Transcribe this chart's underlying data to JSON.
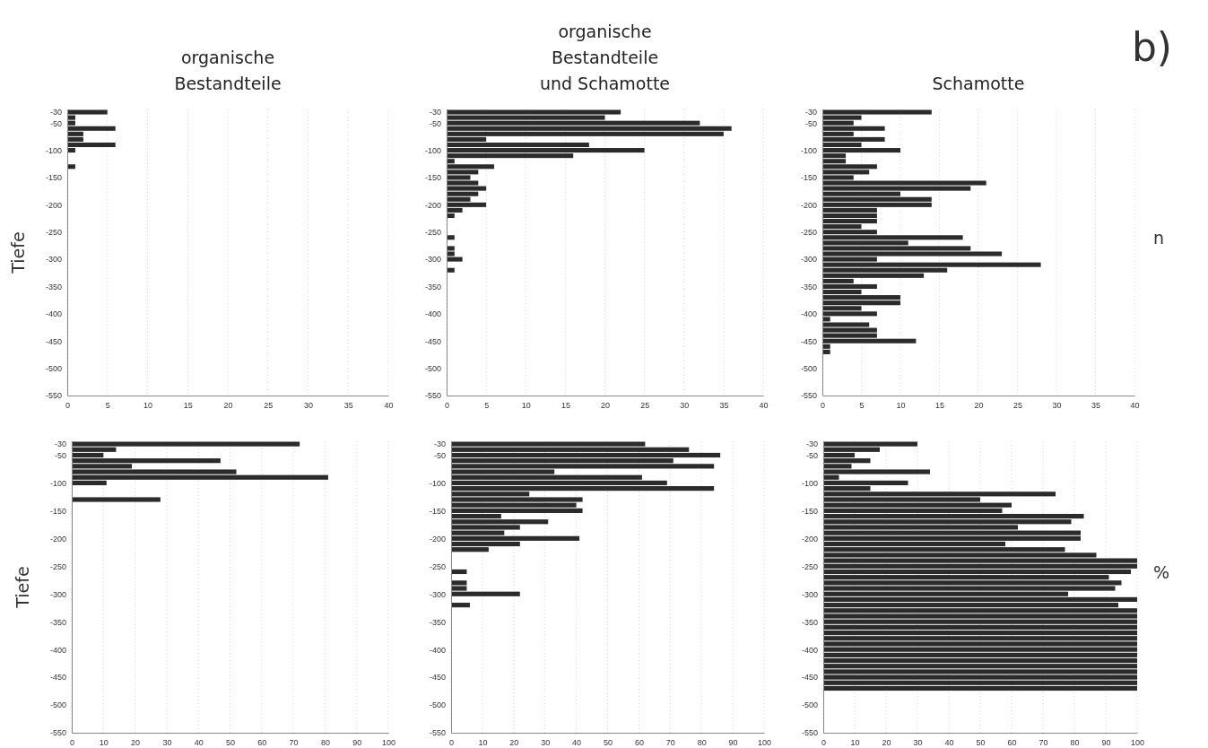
{
  "chart_data": [
    {
      "type": "bar",
      "orientation": "horizontal",
      "title": "organische\nBestandteile",
      "ylabel": "Tiefe",
      "color": "#2b2b2b",
      "grid": "x",
      "x": [
        -30,
        -40,
        -50,
        -60,
        -70,
        -80,
        -90,
        -100,
        -130
      ],
      "values": [
        5,
        1,
        1,
        6,
        2,
        2,
        6,
        1,
        1
      ],
      "xlim": [
        0,
        40
      ],
      "xticks": [
        0,
        5,
        10,
        15,
        20,
        25,
        30,
        35,
        40
      ],
      "ylim": [
        -550,
        -25
      ],
      "yticks": [
        -30,
        -50,
        -100,
        -150,
        -200,
        -250,
        -300,
        -350,
        -400,
        -450,
        -500,
        -550
      ]
    },
    {
      "type": "bar",
      "orientation": "horizontal",
      "title": "organische\nBestandteile\nund Schamotte",
      "color": "#2b2b2b",
      "grid": "x",
      "x": [
        -30,
        -40,
        -50,
        -60,
        -70,
        -80,
        -90,
        -100,
        -110,
        -120,
        -130,
        -140,
        -150,
        -160,
        -170,
        -180,
        -190,
        -200,
        -210,
        -220,
        -260,
        -280,
        -290,
        -300,
        -320
      ],
      "values": [
        22,
        20,
        32,
        36,
        35,
        5,
        18,
        25,
        16,
        1,
        6,
        4,
        3,
        4,
        5,
        4,
        3,
        5,
        2,
        1,
        1,
        1,
        1,
        2,
        1
      ],
      "xlim": [
        0,
        40
      ],
      "xticks": [
        0,
        5,
        10,
        15,
        20,
        25,
        30,
        35,
        40
      ],
      "ylim": [
        -550,
        -25
      ],
      "yticks": [
        -30,
        -50,
        -100,
        -150,
        -200,
        -250,
        -300,
        -350,
        -400,
        -450,
        -500,
        -550
      ]
    },
    {
      "type": "bar",
      "orientation": "horizontal",
      "title": "Schamotte",
      "y2label": "n",
      "annotations": [
        "b)"
      ],
      "color": "#2b2b2b",
      "grid": "x",
      "x": [
        -30,
        -40,
        -50,
        -60,
        -70,
        -80,
        -90,
        -100,
        -110,
        -120,
        -130,
        -140,
        -150,
        -160,
        -170,
        -180,
        -190,
        -200,
        -210,
        -220,
        -230,
        -240,
        -250,
        -260,
        -270,
        -280,
        -290,
        -300,
        -310,
        -320,
        -330,
        -340,
        -350,
        -360,
        -370,
        -380,
        -390,
        -400,
        -410,
        -420,
        -430,
        -440,
        -450,
        -460,
        -470
      ],
      "values": [
        14,
        5,
        4,
        8,
        4,
        8,
        5,
        10,
        3,
        3,
        7,
        6,
        4,
        21,
        19,
        10,
        14,
        14,
        7,
        7,
        7,
        5,
        7,
        18,
        11,
        19,
        23,
        7,
        28,
        16,
        13,
        4,
        7,
        5,
        10,
        10,
        5,
        7,
        1,
        6,
        7,
        7,
        12,
        1,
        1
      ],
      "xlim": [
        0,
        40
      ],
      "xticks": [
        0,
        5,
        10,
        15,
        20,
        25,
        30,
        35,
        40
      ],
      "ylim": [
        -550,
        -25
      ],
      "yticks": [
        -30,
        -50,
        -100,
        -150,
        -200,
        -250,
        -300,
        -350,
        -400,
        -450,
        -500,
        -550
      ]
    },
    {
      "type": "bar",
      "orientation": "horizontal",
      "ylabel": "Tiefe",
      "color": "#2b2b2b",
      "grid": "x",
      "x": [
        -30,
        -40,
        -50,
        -60,
        -70,
        -80,
        -90,
        -100,
        -130
      ],
      "values": [
        72,
        14,
        10,
        47,
        19,
        52,
        81,
        11,
        28
      ],
      "xlim": [
        0,
        100
      ],
      "xticks": [
        0,
        10,
        20,
        30,
        40,
        50,
        60,
        70,
        80,
        90,
        100
      ],
      "ylim": [
        -550,
        -25
      ],
      "yticks": [
        -30,
        -50,
        -100,
        -150,
        -200,
        -250,
        -300,
        -350,
        -400,
        -450,
        -500,
        -550
      ]
    },
    {
      "type": "bar",
      "orientation": "horizontal",
      "color": "#2b2b2b",
      "grid": "x",
      "x": [
        -30,
        -40,
        -50,
        -60,
        -70,
        -80,
        -90,
        -100,
        -110,
        -120,
        -130,
        -140,
        -150,
        -160,
        -170,
        -180,
        -190,
        -200,
        -210,
        -220,
        -260,
        -280,
        -290,
        -300,
        -320
      ],
      "values": [
        62,
        76,
        86,
        71,
        84,
        33,
        61,
        69,
        84,
        25,
        42,
        40,
        42,
        16,
        31,
        22,
        17,
        41,
        22,
        12,
        5,
        5,
        5,
        22,
        6
      ],
      "xlim": [
        0,
        100
      ],
      "xticks": [
        0,
        10,
        20,
        30,
        40,
        50,
        60,
        70,
        80,
        90,
        100
      ],
      "ylim": [
        -550,
        -25
      ],
      "yticks": [
        -30,
        -50,
        -100,
        -150,
        -200,
        -250,
        -300,
        -350,
        -400,
        -450,
        -500,
        -550
      ]
    },
    {
      "type": "bar",
      "orientation": "horizontal",
      "y2label": "%",
      "color": "#2b2b2b",
      "grid": "x",
      "x": [
        -30,
        -40,
        -50,
        -60,
        -70,
        -80,
        -90,
        -100,
        -110,
        -120,
        -130,
        -140,
        -150,
        -160,
        -170,
        -180,
        -190,
        -200,
        -210,
        -220,
        -230,
        -240,
        -250,
        -260,
        -270,
        -280,
        -290,
        -300,
        -310,
        -320,
        -330,
        -340,
        -350,
        -360,
        -370,
        -380,
        -390,
        -400,
        -410,
        -420,
        -430,
        -440,
        -450,
        -460,
        -470
      ],
      "values": [
        30,
        18,
        10,
        15,
        9,
        34,
        5,
        27,
        15,
        74,
        50,
        60,
        57,
        83,
        79,
        62,
        82,
        82,
        58,
        77,
        87,
        100,
        100,
        98,
        91,
        95,
        93,
        78,
        100,
        94,
        100,
        100,
        100,
        100,
        100,
        100,
        100,
        100,
        100,
        100,
        100,
        100,
        100,
        100,
        100
      ],
      "xlim": [
        0,
        100
      ],
      "xticks": [
        0,
        10,
        20,
        30,
        40,
        50,
        60,
        70,
        80,
        90,
        100
      ],
      "ylim": [
        -550,
        -25
      ],
      "yticks": [
        -30,
        -50,
        -100,
        -150,
        -200,
        -250,
        -300,
        -350,
        -400,
        -450,
        -500,
        -550
      ]
    }
  ]
}
